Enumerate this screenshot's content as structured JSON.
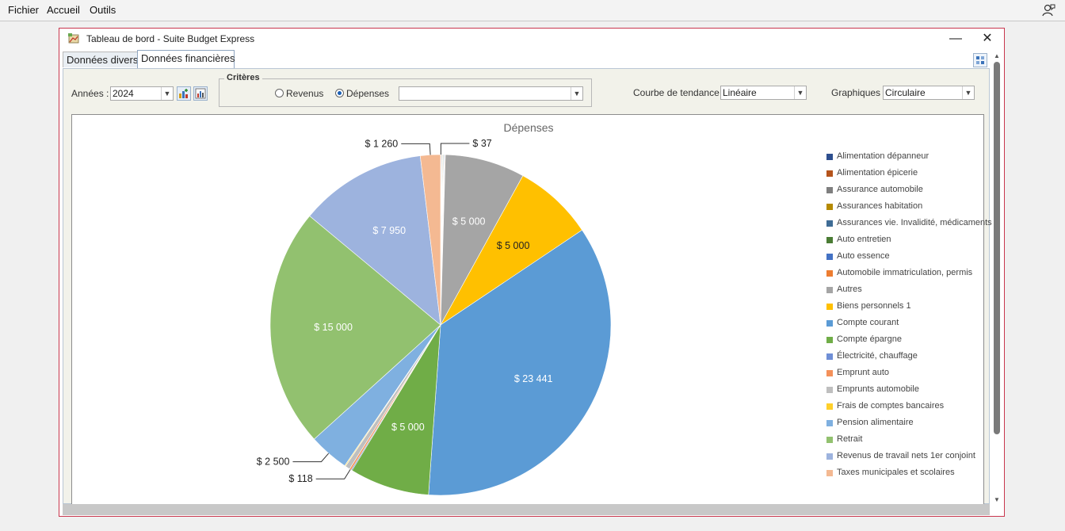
{
  "menubar": {
    "items": [
      "Fichier",
      "Accueil",
      "Outils"
    ]
  },
  "window": {
    "title": "Tableau de bord - Suite Budget Express",
    "minimize": "—",
    "close": "✕"
  },
  "tabs": [
    {
      "label": "Données divers"
    },
    {
      "label": "Données financières"
    }
  ],
  "controls": {
    "years_label": "Années :",
    "year_value": "2024",
    "criteria_title": "Critères",
    "radio_revenus": "Revenus",
    "radio_depenses": "Dépenses",
    "criteria_combo_value": "",
    "trend_label": "Courbe de tendance :",
    "trend_value": "Linéaire",
    "charts_label": "Graphiques :",
    "charts_value": "Circulaire"
  },
  "chart_data": {
    "type": "pie",
    "title": "Dépenses",
    "legend_position": "right",
    "slices": [
      {
        "name": "Alimentation dépanneur",
        "value": 37,
        "label": "$ 37",
        "color": "#264478"
      },
      {
        "name": "Alimentation épicerie",
        "value": 37,
        "label": "",
        "color": "#9e480e"
      },
      {
        "name": "Assurance automobile",
        "value": 37,
        "label": "",
        "color": "#636363"
      },
      {
        "name": "Assurances habitation",
        "value": 37,
        "label": "",
        "color": "#997300"
      },
      {
        "name": "Assurances vie. Invalidité, médicaments",
        "value": 37,
        "label": "",
        "color": "#43682b"
      },
      {
        "name": "Auto entretien",
        "value": 37,
        "label": "",
        "color": "#698ed0"
      },
      {
        "name": "Auto essence",
        "value": 37,
        "label": "",
        "color": "#4472c4"
      },
      {
        "name": "Automobile immatriculation, permis",
        "value": 37,
        "label": "",
        "color": "#ed7d31"
      },
      {
        "name": "Autres",
        "value": 5000,
        "label": "$ 5 000",
        "color": "#a5a5a5"
      },
      {
        "name": "Biens personnels 1",
        "value": 5000,
        "label": "$ 5 000",
        "color": "#ffc000"
      },
      {
        "name": "Compte courant",
        "value": 23441,
        "label": "$ 23 441",
        "color": "#5b9bd5"
      },
      {
        "name": "Compte épargne",
        "value": 5000,
        "label": "$ 5 000",
        "color": "#70ad47"
      },
      {
        "name": "Électricité, chauffage",
        "value": 60,
        "label": "",
        "color": "#4472c4"
      },
      {
        "name": "Emprunt auto",
        "value": 118,
        "label": "$ 118",
        "color": "#f4915a"
      },
      {
        "name": "Emprunts automobile",
        "value": 300,
        "label": "",
        "color": "#bfbfbf"
      },
      {
        "name": "Frais de comptes bancaires",
        "value": 60,
        "label": "",
        "color": "#ffd02b"
      },
      {
        "name": "Pension alimentaire",
        "value": 2500,
        "label": "$ 2 500",
        "color": "#7fb0e0"
      },
      {
        "name": "Retrait",
        "value": 15000,
        "label": "$ 15 000",
        "color": "#92c16f"
      },
      {
        "name": "Revenus de travail nets 1er conjoint",
        "value": 7950,
        "label": "$ 7 950",
        "color": "#9db3de"
      },
      {
        "name": "Taxes municipales et scolaires",
        "value": 1260,
        "label": "$ 1 260",
        "color": "#f4b992"
      }
    ],
    "legend": [
      {
        "name": "Alimentation dépanneur",
        "color": "#2e4f8f"
      },
      {
        "name": "Alimentation épicerie",
        "color": "#b5541c"
      },
      {
        "name": "Assurance automobile",
        "color": "#7f7f7f"
      },
      {
        "name": "Assurances habitation",
        "color": "#b58a00"
      },
      {
        "name": "Assurances vie. Invalidité, médicaments",
        "color": "#3f6c95"
      },
      {
        "name": "Auto entretien",
        "color": "#4a7c34"
      },
      {
        "name": "Auto essence",
        "color": "#4472c4"
      },
      {
        "name": "Automobile immatriculation, permis",
        "color": "#ed7d31"
      },
      {
        "name": "Autres",
        "color": "#a5a5a5"
      },
      {
        "name": "Biens personnels 1",
        "color": "#ffc000"
      },
      {
        "name": "Compte courant",
        "color": "#5b9bd5"
      },
      {
        "name": "Compte épargne",
        "color": "#70ad47"
      },
      {
        "name": "Électricité, chauffage",
        "color": "#6f8fd6"
      },
      {
        "name": "Emprunt auto",
        "color": "#f4915a"
      },
      {
        "name": "Emprunts automobile",
        "color": "#bfbfbf"
      },
      {
        "name": "Frais de comptes bancaires",
        "color": "#ffd02b"
      },
      {
        "name": "Pension alimentaire",
        "color": "#7fb0e0"
      },
      {
        "name": "Retrait",
        "color": "#92c16f"
      },
      {
        "name": "Revenus de travail nets 1er conjoint",
        "color": "#9db3de"
      },
      {
        "name": "Taxes municipales et scolaires",
        "color": "#f4b992"
      }
    ]
  }
}
